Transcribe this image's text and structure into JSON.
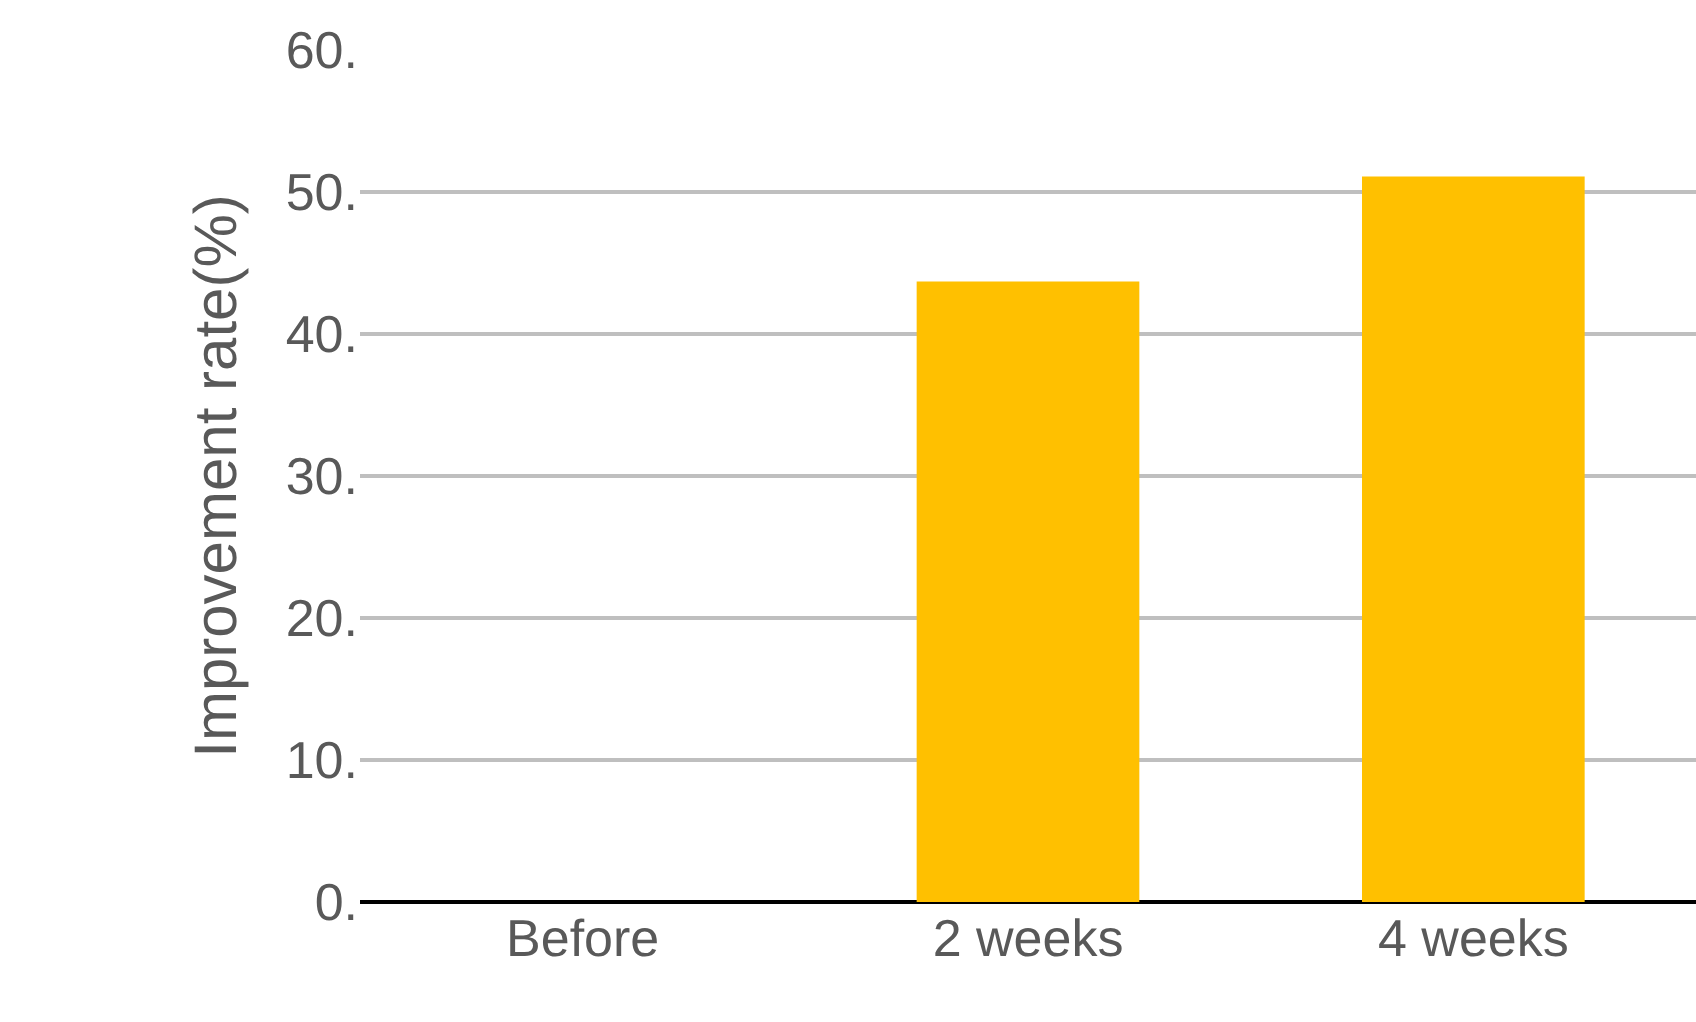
{
  "chart_data": {
    "type": "bar",
    "ylabel": "Improvement rate(%)",
    "categories": [
      "Before",
      "2 weeks",
      "4 weeks"
    ],
    "values": [
      0,
      43.7,
      51.1
    ],
    "color": "#ffc000",
    "ylim": [
      0,
      60
    ],
    "yticks": [
      {
        "value": 0,
        "label": "0."
      },
      {
        "value": 10,
        "label": "10."
      },
      {
        "value": 20,
        "label": "20."
      },
      {
        "value": 30,
        "label": "30."
      },
      {
        "value": 40,
        "label": "40."
      },
      {
        "value": 50,
        "label": "50."
      },
      {
        "value": 60,
        "label": "60."
      }
    ],
    "grid": "y",
    "legend": false
  }
}
